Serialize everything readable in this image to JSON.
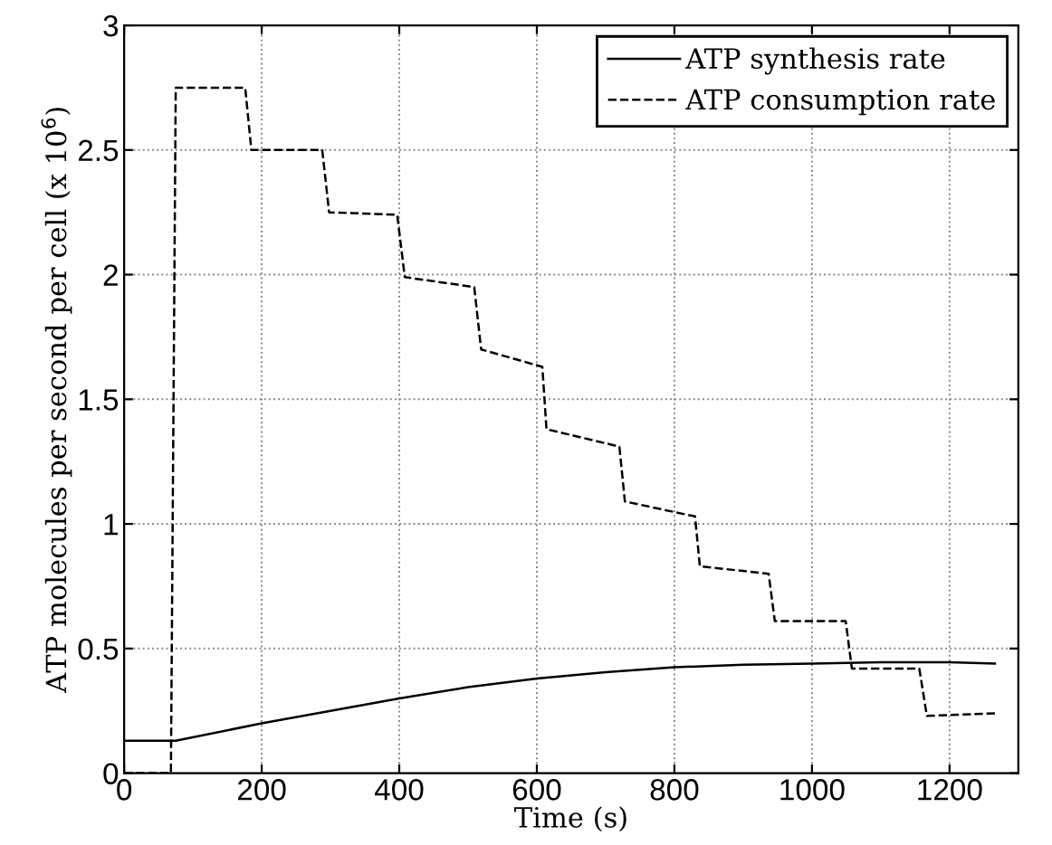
{
  "chart_data": {
    "type": "line",
    "xlabel": "Time (s)",
    "ylabel": "ATP molecules per second per cell (x 10$^{6}$)",
    "xlim": [
      0,
      1300
    ],
    "ylim": [
      0,
      3
    ],
    "xticks": [
      0,
      200,
      400,
      600,
      800,
      1000,
      1200
    ],
    "yticks": [
      0,
      0.5,
      1,
      1.5,
      2,
      2.5,
      3
    ],
    "grid": true,
    "legend": "top right",
    "marker": "none",
    "series": [
      {
        "name": "ATP synthesis rate",
        "color": "#000000",
        "line_style": "solid",
        "x": [
          0,
          75,
          200,
          300,
          400,
          500,
          600,
          700,
          800,
          900,
          1000,
          1100,
          1200,
          1266
        ],
        "values": [
          0.13,
          0.13,
          0.2,
          0.25,
          0.3,
          0.345,
          0.38,
          0.405,
          0.425,
          0.435,
          0.44,
          0.445,
          0.445,
          0.44
        ]
      },
      {
        "name": "ATP consumption rate",
        "color": "#000000",
        "line_style": "dashed",
        "x": [
          0,
          68,
          75,
          176,
          185,
          288,
          298,
          397,
          408,
          509,
          519,
          608,
          614,
          720,
          728,
          830,
          837,
          937,
          946,
          1049,
          1058,
          1156,
          1167,
          1266
        ],
        "values": [
          0,
          0,
          2.75,
          2.75,
          2.5,
          2.5,
          2.25,
          2.24,
          1.99,
          1.95,
          1.7,
          1.63,
          1.38,
          1.31,
          1.09,
          1.03,
          0.83,
          0.8,
          0.61,
          0.61,
          0.42,
          0.42,
          0.23,
          0.24
        ]
      }
    ]
  }
}
